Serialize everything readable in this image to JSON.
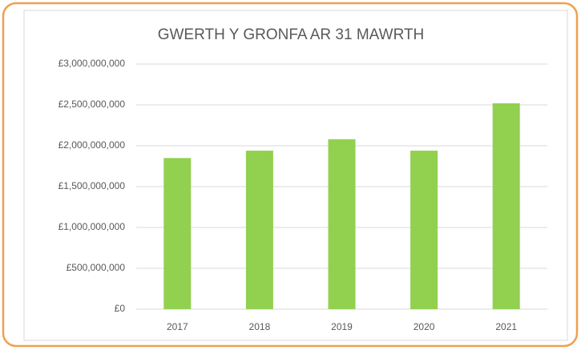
{
  "chart_data": {
    "type": "bar",
    "title": "GWERTH Y GRONFA AR 31 MAWRTH",
    "categories": [
      "2017",
      "2018",
      "2019",
      "2020",
      "2021"
    ],
    "values": [
      1850000000,
      1940000000,
      2080000000,
      1940000000,
      2520000000
    ],
    "color": "#92d050",
    "ylim": [
      0,
      3000000000
    ],
    "yticks": [
      {
        "value": 0,
        "label": "£0"
      },
      {
        "value": 500000000,
        "label": "£500,000,000"
      },
      {
        "value": 1000000000,
        "label": "£1,000,000,000"
      },
      {
        "value": 1500000000,
        "label": "£1,500,000,000"
      },
      {
        "value": 2000000000,
        "label": "£2,000,000,000"
      },
      {
        "value": 2500000000,
        "label": "£2,500,000,000"
      },
      {
        "value": 3000000000,
        "label": "£3,000,000,000"
      }
    ],
    "grid": true
  }
}
